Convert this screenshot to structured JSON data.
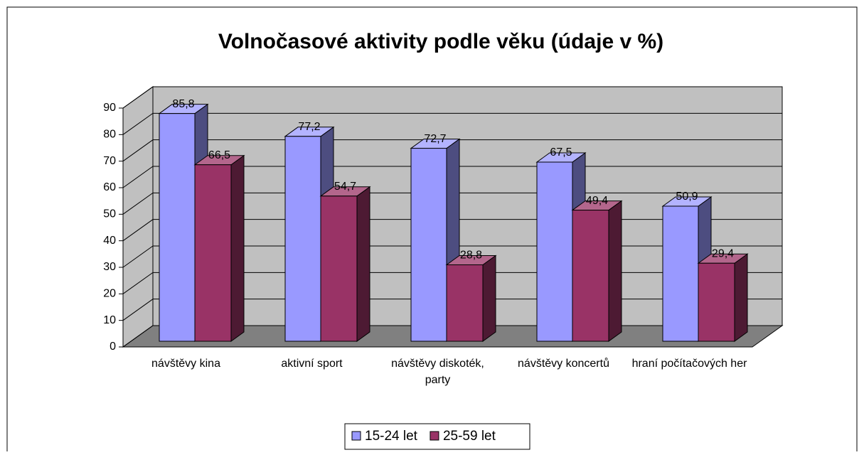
{
  "chart_data": {
    "type": "bar3d",
    "title": "Volnočasové aktivity podle věku (údaje v %)",
    "categories": [
      "návštěvy kina",
      "aktivní sport",
      "návštěvy diskoték, party",
      "návštěvy koncertů",
      "hraní počítačových her"
    ],
    "series": [
      {
        "name": "15-24 let",
        "color": "#9999ff",
        "values": [
          85.8,
          77.2,
          72.7,
          67.5,
          50.9
        ],
        "value_labels": [
          "85,8",
          "77,2",
          "72,7",
          "67,5",
          "50,9"
        ]
      },
      {
        "name": "25-59 let",
        "color": "#993366",
        "values": [
          66.5,
          54.7,
          28.8,
          49.4,
          29.4
        ],
        "value_labels": [
          "66,5",
          "54,7",
          "28,8",
          "49,4",
          "29,4"
        ]
      }
    ],
    "ylim": [
      0,
      90
    ],
    "yticks": [
      0,
      10,
      20,
      30,
      40,
      50,
      60,
      70,
      80,
      90
    ],
    "grid": true,
    "legend": "bottom"
  }
}
